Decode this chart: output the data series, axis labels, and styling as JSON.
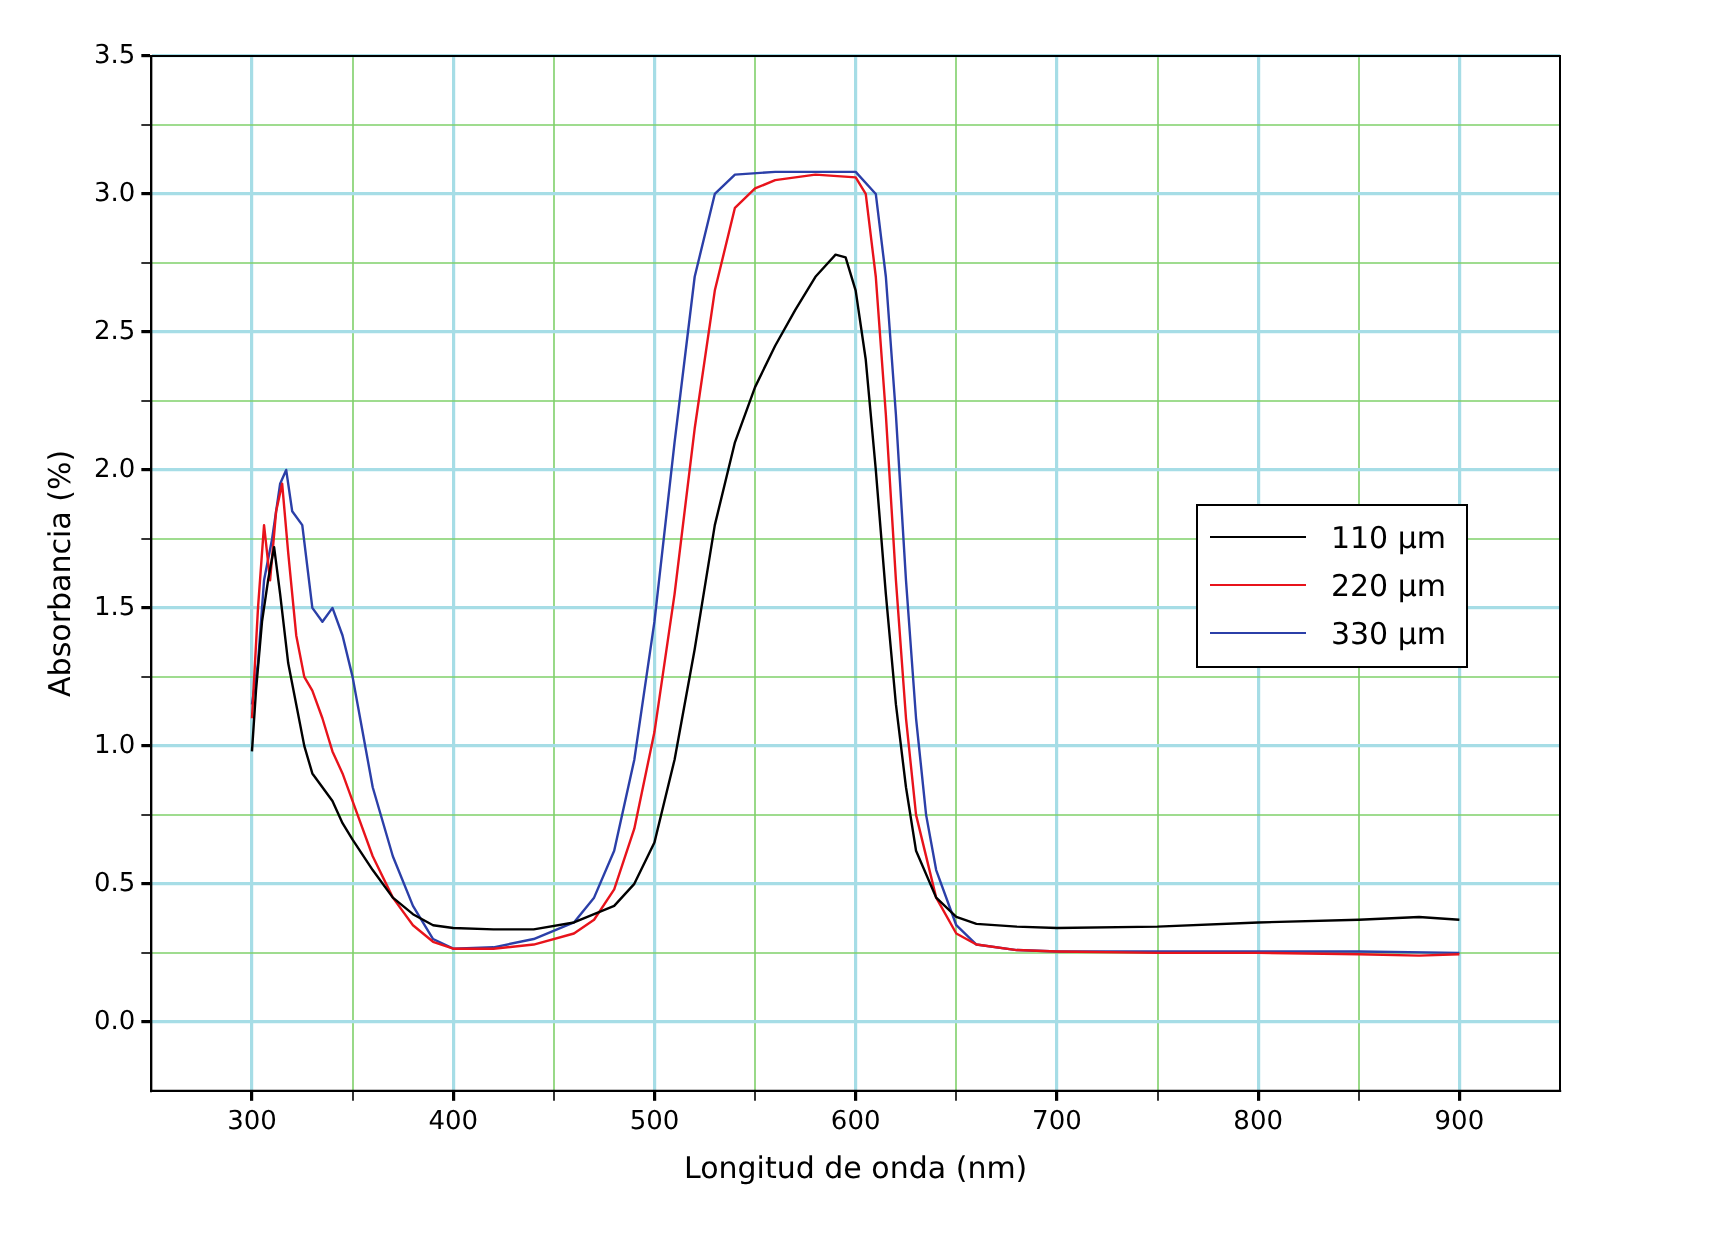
{
  "chart_data": {
    "type": "line",
    "xlabel": "Longitud de onda (nm)",
    "ylabel": "Absorbancia (%)",
    "xlim": [
      250,
      950
    ],
    "ylim": [
      -0.25,
      3.5
    ],
    "xticks": [
      300,
      {
        "value": 350,
        "label": null
      },
      400,
      {
        "value": 450,
        "label": null
      },
      500,
      {
        "value": 550,
        "label": null
      },
      600,
      {
        "value": 650,
        "label": null
      },
      700,
      {
        "value": 750,
        "label": null
      },
      800,
      {
        "value": 850,
        "label": null
      },
      900
    ],
    "yticks": [
      {
        "value": 0,
        "label": "0.0"
      },
      {
        "value": 0.25,
        "label": null
      },
      {
        "value": 0.5,
        "label": "0.5"
      },
      {
        "value": 0.75,
        "label": null
      },
      {
        "value": 1,
        "label": "1.0"
      },
      {
        "value": 1.25,
        "label": null
      },
      {
        "value": 1.5,
        "label": "1.5"
      },
      {
        "value": 1.75,
        "label": null
      },
      {
        "value": 2,
        "label": "2.0"
      },
      {
        "value": 2.25,
        "label": null
      },
      {
        "value": 2.5,
        "label": "2.5"
      },
      {
        "value": 2.75,
        "label": null
      },
      {
        "value": 3,
        "label": "3.0"
      },
      {
        "value": 3.25,
        "label": null
      },
      {
        "value": 3.5,
        "label": "3.5"
      }
    ],
    "grid": true,
    "legend": "right",
    "marker": "none",
    "line_style": "solid",
    "series": [
      {
        "name": "110 µm",
        "color": "#000000",
        "x": [
          300,
          302,
          305,
          308,
          311,
          314,
          318,
          322,
          326,
          330,
          335,
          340,
          345,
          350,
          360,
          370,
          380,
          390,
          400,
          420,
          440,
          460,
          480,
          490,
          500,
          510,
          520,
          530,
          540,
          550,
          560,
          570,
          580,
          590,
          595,
          600,
          605,
          610,
          615,
          620,
          625,
          630,
          640,
          650,
          660,
          680,
          700,
          750,
          800,
          850,
          880,
          900
        ],
        "values": [
          0.98,
          1.2,
          1.45,
          1.6,
          1.72,
          1.55,
          1.3,
          1.15,
          1.0,
          0.9,
          0.85,
          0.8,
          0.72,
          0.66,
          0.55,
          0.45,
          0.39,
          0.35,
          0.34,
          0.335,
          0.335,
          0.36,
          0.42,
          0.5,
          0.65,
          0.95,
          1.35,
          1.8,
          2.1,
          2.3,
          2.45,
          2.58,
          2.7,
          2.78,
          2.77,
          2.65,
          2.4,
          2.0,
          1.55,
          1.15,
          0.85,
          0.62,
          0.45,
          0.38,
          0.355,
          0.345,
          0.34,
          0.345,
          0.36,
          0.37,
          0.38,
          0.37
        ]
      },
      {
        "name": "220 µm",
        "color": "#e8131b",
        "x": [
          300,
          303,
          306,
          309,
          312,
          315,
          318,
          322,
          326,
          330,
          335,
          340,
          345,
          350,
          360,
          370,
          380,
          390,
          400,
          420,
          440,
          460,
          470,
          480,
          490,
          500,
          510,
          520,
          530,
          540,
          550,
          560,
          580,
          600,
          605,
          610,
          615,
          620,
          625,
          630,
          640,
          650,
          660,
          680,
          700,
          750,
          800,
          850,
          880,
          900
        ],
        "values": [
          1.1,
          1.5,
          1.8,
          1.6,
          1.85,
          1.95,
          1.7,
          1.4,
          1.25,
          1.2,
          1.1,
          0.98,
          0.9,
          0.8,
          0.6,
          0.45,
          0.35,
          0.29,
          0.265,
          0.265,
          0.28,
          0.32,
          0.37,
          0.48,
          0.7,
          1.05,
          1.55,
          2.15,
          2.65,
          2.95,
          3.02,
          3.05,
          3.07,
          3.06,
          3.0,
          2.7,
          2.2,
          1.6,
          1.1,
          0.75,
          0.45,
          0.32,
          0.28,
          0.26,
          0.255,
          0.25,
          0.25,
          0.245,
          0.24,
          0.245
        ]
      },
      {
        "name": "330 µm",
        "color": "#2b3fa8",
        "x": [
          300,
          303,
          306,
          310,
          314,
          317,
          320,
          325,
          330,
          335,
          340,
          345,
          350,
          355,
          360,
          370,
          380,
          390,
          400,
          420,
          440,
          460,
          470,
          480,
          490,
          500,
          510,
          520,
          530,
          540,
          560,
          580,
          600,
          610,
          615,
          620,
          625,
          630,
          635,
          640,
          650,
          660,
          680,
          700,
          750,
          800,
          850,
          900
        ],
        "values": [
          1.15,
          1.3,
          1.6,
          1.75,
          1.95,
          2.0,
          1.85,
          1.8,
          1.5,
          1.45,
          1.5,
          1.4,
          1.25,
          1.05,
          0.85,
          0.6,
          0.42,
          0.3,
          0.265,
          0.27,
          0.3,
          0.36,
          0.45,
          0.62,
          0.95,
          1.45,
          2.1,
          2.7,
          3.0,
          3.07,
          3.08,
          3.08,
          3.08,
          3.0,
          2.7,
          2.2,
          1.6,
          1.1,
          0.75,
          0.55,
          0.35,
          0.28,
          0.26,
          0.255,
          0.255,
          0.255,
          0.255,
          0.25
        ]
      }
    ]
  }
}
